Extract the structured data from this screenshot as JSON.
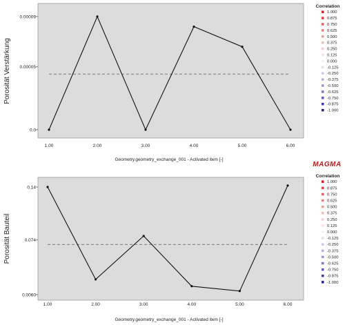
{
  "logo_text": "MAGMA",
  "chart_data": [
    {
      "type": "line",
      "ylabel": "Porosität Verstärkung",
      "xlabel": "Geometry.geometry_exchange_001 - Activated item [-]",
      "x": [
        1,
        2,
        3,
        4,
        5,
        6
      ],
      "x_tick_labels": [
        "1.00",
        "2.00",
        "3.00",
        "4.00",
        "5.00",
        "6.00"
      ],
      "y_tick_values": [
        0.0,
        5e-05,
        9e-05
      ],
      "y_tick_labels": [
        "0.0",
        "0.00005",
        "0.00009"
      ],
      "series": [
        {
          "values": [
            0.0,
            9e-05,
            0.0,
            8.2e-05,
            6.6e-05,
            0.0
          ]
        }
      ],
      "mean_line": 4.43e-05,
      "ylim": [
        0.0,
        9e-05
      ],
      "xlim": [
        1,
        6
      ],
      "grid": false,
      "legend": {
        "title": "Correlation",
        "labels": [
          "1.000",
          "0.875",
          "0.750",
          "0.625",
          "0.500",
          "0.375",
          "0.250",
          "0.125",
          "0.000",
          "-0.125",
          "-0.250",
          "-0.375",
          "-0.500",
          "-0.625",
          "-0.750",
          "-0.875",
          "-1.000"
        ],
        "colors": [
          "#e8191b",
          "#ea3a3a",
          "#ed5a5a",
          "#f07a7a",
          "#f39a9a",
          "#f6b5b5",
          "#f8cccc",
          "#fae0e0",
          "#f2f2f2",
          "#e0e0f3",
          "#c9c9ee",
          "#b0b0e6",
          "#9494dc",
          "#7878d0",
          "#5858c4",
          "#3a3ab6",
          "#1c1ca6"
        ]
      }
    },
    {
      "type": "line",
      "ylabel": "Porosität Bauteil",
      "xlabel": "Geometry.geometry_exchange_001 - Activated item [-]",
      "x": [
        1,
        2,
        3,
        4,
        5,
        6
      ],
      "x_tick_labels": [
        "1.00",
        "2.00",
        "3.00",
        "4.00",
        "5.00",
        "6.00"
      ],
      "y_tick_values": [
        0.006,
        0.074,
        0.14
      ],
      "y_tick_labels": [
        "0.0060",
        "0.074",
        "0.14"
      ],
      "series": [
        {
          "values": [
            0.14,
            0.025,
            0.079,
            0.0165,
            0.0105,
            0.1418
          ]
        }
      ],
      "mean_line": 0.0685,
      "ylim": [
        0.006,
        0.14
      ],
      "xlim": [
        1,
        6
      ],
      "grid": false,
      "legend": {
        "title": "Correlation",
        "labels": [
          "1.000",
          "0.875",
          "0.750",
          "0.625",
          "0.500",
          "0.375",
          "0.250",
          "0.125",
          "0.000",
          "-0.125",
          "-0.250",
          "-0.375",
          "-0.500",
          "-0.625",
          "-0.750",
          "-0.875",
          "-1.000"
        ],
        "colors": [
          "#e8191b",
          "#ea3a3a",
          "#ed5a5a",
          "#f07a7a",
          "#f39a9a",
          "#f6b5b5",
          "#f8cccc",
          "#fae0e0",
          "#f2f2f2",
          "#e0e0f3",
          "#c9c9ee",
          "#b0b0e6",
          "#9494dc",
          "#7878d0",
          "#5858c4",
          "#3a3ab6",
          "#1c1ca6"
        ]
      }
    }
  ]
}
